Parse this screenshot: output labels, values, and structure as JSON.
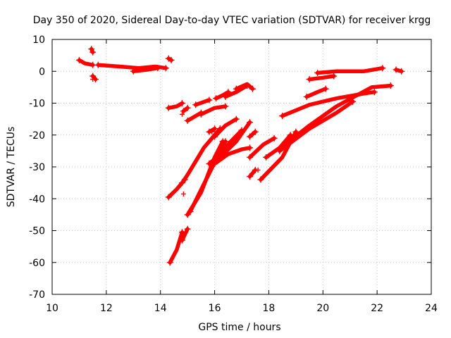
{
  "chart_data": {
    "type": "scatter",
    "title": "Day 350 of 2020, Sidereal Day-to-day VTEC variation (SDTVAR) for receiver krgg",
    "xlabel": "GPS time / hours",
    "ylabel": "SDTVAR / TECUs",
    "xlim": [
      10,
      24
    ],
    "ylim": [
      -70,
      10
    ],
    "xticks": [
      "10",
      "12",
      "14",
      "16",
      "18",
      "20",
      "22",
      "24"
    ],
    "yticks": [
      "10",
      "0",
      "-10",
      "-20",
      "-30",
      "-40",
      "-50",
      "-60",
      "-70"
    ],
    "grid": true,
    "legend": "none",
    "marker": "+",
    "color": "#ff0000",
    "tracks": [
      {
        "x": [
          11.0,
          11.2,
          11.5
        ],
        "y": [
          3.5,
          2.5,
          2.0
        ]
      },
      {
        "x": [
          11.5,
          11.6
        ],
        "y": [
          -1.5,
          -2.5
        ]
      },
      {
        "x": [
          11.45,
          11.5
        ],
        "y": [
          7.0,
          6.0
        ]
      },
      {
        "x": [
          11.7,
          12.5,
          13.2,
          13.8,
          14.2
        ],
        "y": [
          2.0,
          1.5,
          1.0,
          1.5,
          1.0
        ]
      },
      {
        "x": [
          13.0,
          13.5,
          13.9
        ],
        "y": [
          0.0,
          0.5,
          1.0
        ]
      },
      {
        "x": [
          14.3,
          14.4
        ],
        "y": [
          4.0,
          3.5
        ]
      },
      {
        "x": [
          14.3,
          14.6,
          14.8
        ],
        "y": [
          -11.5,
          -11.0,
          -10.0
        ]
      },
      {
        "x": [
          14.85,
          15.0
        ],
        "y": [
          -12.5,
          -11.5
        ]
      },
      {
        "x": [
          15.0,
          15.3,
          15.5
        ],
        "y": [
          -15.5,
          -14.0,
          -13.0
        ]
      },
      {
        "x": [
          15.5,
          16.0,
          16.4
        ],
        "y": [
          -13.5,
          -11.5,
          -11.0
        ]
      },
      {
        "x": [
          15.3,
          15.8
        ],
        "y": [
          -10.5,
          -9.0
        ]
      },
      {
        "x": [
          15.8,
          16.0
        ],
        "y": [
          -19.0,
          -18.0
        ]
      },
      {
        "x": [
          16.05,
          16.3,
          16.5
        ],
        "y": [
          -8.5,
          -7.5,
          -6.5
        ]
      },
      {
        "x": [
          16.4,
          16.8,
          17.2
        ],
        "y": [
          -8.0,
          -6.5,
          -4.5
        ]
      },
      {
        "x": [
          16.8,
          17.2,
          17.4
        ],
        "y": [
          -5.5,
          -4.0,
          -5.5
        ]
      },
      {
        "x": [
          14.3,
          14.6,
          14.9
        ],
        "y": [
          -39.5,
          -37.0,
          -34.0
        ]
      },
      {
        "x": [
          14.35,
          14.6,
          14.8
        ],
        "y": [
          -60.0,
          -56.0,
          -50.5
        ]
      },
      {
        "x": [
          14.8,
          15.0
        ],
        "y": [
          -53.0,
          -49.5
        ]
      },
      {
        "x": [
          14.8,
          15.0,
          15.6,
          16.2
        ],
        "y": [
          -35.0,
          -32.5,
          -24.0,
          -18.0
        ]
      },
      {
        "x": [
          15.0,
          15.5,
          16.0,
          16.3
        ],
        "y": [
          -45.0,
          -38.0,
          -27.0,
          -22.0
        ]
      },
      {
        "x": [
          15.1,
          15.8,
          16.4
        ],
        "y": [
          -44.0,
          -32.0,
          -22.0
        ]
      },
      {
        "x": [
          15.8,
          16.2,
          16.6,
          17.0
        ],
        "y": [
          -29.0,
          -26.0,
          -22.0,
          -18.5
        ]
      },
      {
        "x": [
          16.2,
          16.8,
          17.3
        ],
        "y": [
          -27.0,
          -22.0,
          -16.0
        ]
      },
      {
        "x": [
          16.0,
          16.5,
          17.0,
          17.3
        ],
        "y": [
          -29.0,
          -26.0,
          -24.5,
          -24.0
        ]
      },
      {
        "x": [
          16.0,
          16.4,
          16.8
        ],
        "y": [
          -20.5,
          -17.0,
          -15.0
        ]
      },
      {
        "x": [
          17.3,
          17.5
        ],
        "y": [
          -33.0,
          -31.0
        ]
      },
      {
        "x": [
          17.3,
          17.5
        ],
        "y": [
          -20.5,
          -19.0
        ]
      },
      {
        "x": [
          17.3,
          17.8,
          18.2
        ],
        "y": [
          -27.0,
          -23.0,
          -21.0
        ]
      },
      {
        "x": [
          17.7,
          18.5,
          19.0
        ],
        "y": [
          -34.0,
          -27.0,
          -19.0
        ]
      },
      {
        "x": [
          17.9,
          18.4,
          18.8
        ],
        "y": [
          -27.0,
          -24.0,
          -20.0
        ]
      },
      {
        "x": [
          18.4,
          19.5,
          20.5,
          21.1
        ],
        "y": [
          -25.0,
          -18.0,
          -13.0,
          -9.5
        ]
      },
      {
        "x": [
          18.6,
          19.5,
          20.5,
          21.8,
          22.5
        ],
        "y": [
          -23.0,
          -17.0,
          -11.0,
          -5.0,
          -4.5
        ]
      },
      {
        "x": [
          18.5,
          19.5,
          20.5,
          21.5,
          21.9
        ],
        "y": [
          -14.0,
          -10.5,
          -8.5,
          -7.0,
          -6.5
        ]
      },
      {
        "x": [
          19.4,
          19.8,
          20.1
        ],
        "y": [
          -8.0,
          -6.5,
          -5.5
        ]
      },
      {
        "x": [
          19.5,
          20.0,
          20.4
        ],
        "y": [
          -2.5,
          -2.0,
          -1.5
        ]
      },
      {
        "x": [
          19.8,
          20.5,
          21.5,
          22.2
        ],
        "y": [
          -0.5,
          0.0,
          0.0,
          1.0
        ]
      },
      {
        "x": [
          22.7,
          22.9
        ],
        "y": [
          0.5,
          0.0
        ]
      }
    ],
    "points": [
      {
        "x": 14.8,
        "y": -13.5
      },
      {
        "x": 14.85,
        "y": -38.5
      },
      {
        "x": 17.6,
        "y": -31.0
      },
      {
        "x": 11.5,
        "y": -2.5
      },
      {
        "x": 15.9,
        "y": -19.0
      }
    ]
  }
}
